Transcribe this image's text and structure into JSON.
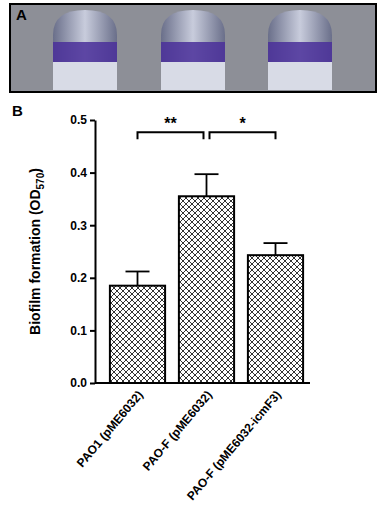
{
  "panel_labels": [
    "A",
    "B"
  ],
  "chart_data": {
    "type": "bar",
    "categories": [
      "PAO1 (pME6032)",
      "PAO-F (pME6032)",
      "PAO-F (pME6032-icmF3)"
    ],
    "values": [
      0.185,
      0.355,
      0.243
    ],
    "errors": [
      0.027,
      0.042,
      0.023
    ],
    "color": "#000000",
    "y_label_parts": [
      "Biofilm formation (OD",
      "570",
      ")"
    ],
    "ylim": [
      0,
      0.5
    ],
    "yticks": [
      {
        "value": 0,
        "label": "0.0"
      },
      {
        "value": 0.1,
        "label": "0.1"
      },
      {
        "value": 0.2,
        "label": "0.2"
      },
      {
        "value": 0.3,
        "label": "0.3"
      },
      {
        "value": 0.4,
        "label": "0.4"
      },
      {
        "value": 0.5,
        "label": "0.5"
      }
    ],
    "annotations": [
      {
        "text": "**",
        "from": 0,
        "to": 1
      },
      {
        "text": "*",
        "from": 1,
        "to": 2
      }
    ]
  }
}
